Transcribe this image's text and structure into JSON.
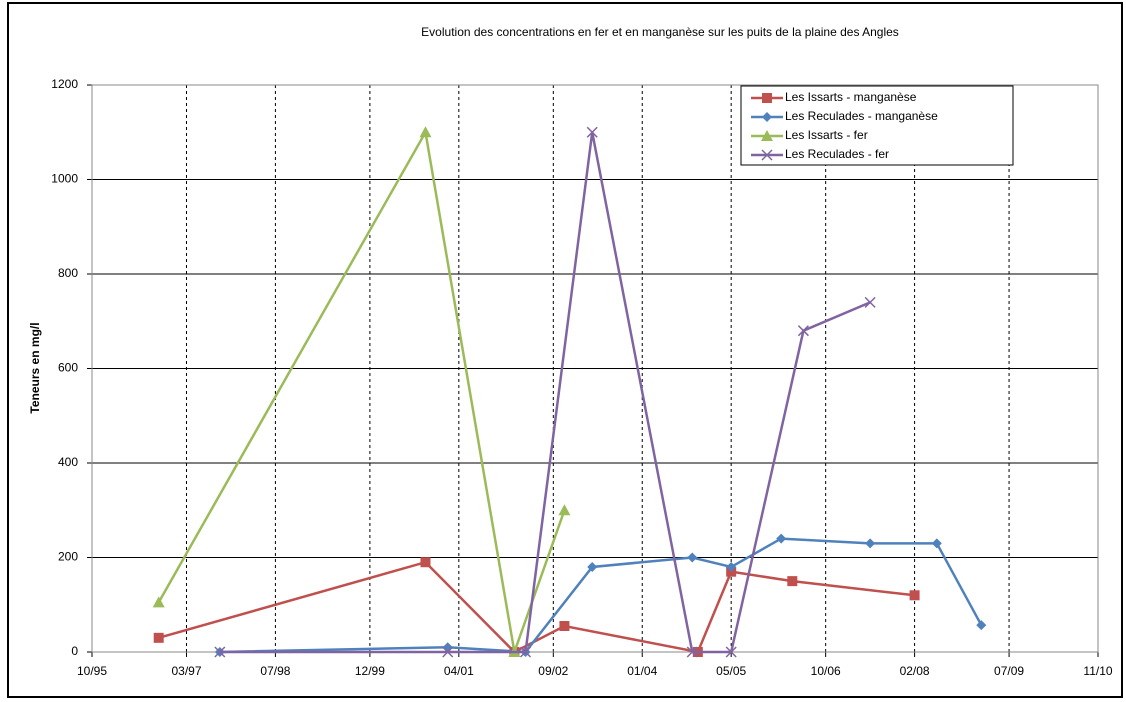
{
  "chart_data": {
    "type": "line",
    "title": "Evolution des concentrations en fer et en manganèse sur les puits de la plaine des Angles",
    "y_label": "Teneurs en mg/l",
    "xlim": [
      "1995-10",
      "2010-11"
    ],
    "xticks": [
      {
        "value": "1995-10",
        "label": "10/95"
      },
      {
        "value": "1997-03",
        "label": "03/97"
      },
      {
        "value": "1998-07",
        "label": "07/98"
      },
      {
        "value": "1999-12",
        "label": "12/99"
      },
      {
        "value": "2001-04",
        "label": "04/01"
      },
      {
        "value": "2002-09",
        "label": "09/02"
      },
      {
        "value": "2004-01",
        "label": "01/04"
      },
      {
        "value": "2005-05",
        "label": "05/05"
      },
      {
        "value": "2006-10",
        "label": "10/06"
      },
      {
        "value": "2008-02",
        "label": "02/08"
      },
      {
        "value": "2009-07",
        "label": "07/09"
      },
      {
        "value": "2010-11",
        "label": "11/10"
      }
    ],
    "ylim": [
      0,
      1200
    ],
    "yticks": [
      0,
      200,
      400,
      600,
      800,
      1000,
      1200
    ],
    "grid": true,
    "legend": "upper right",
    "series": [
      {
        "name": "Les Issarts - manganèse",
        "color": "#c0504d",
        "marker": "square",
        "x": [
          "1996-10",
          "2000-10",
          "2002-02",
          "2002-11",
          "2004-11",
          "2005-05",
          "2006-04",
          "2008-02"
        ],
        "values": [
          30,
          190,
          0,
          55,
          0,
          170,
          150,
          120
        ]
      },
      {
        "name": "Les Reculades - manganèse",
        "color": "#4f81bd",
        "marker": "diamond",
        "x": [
          "1997-09",
          "2001-02",
          "2002-04",
          "2003-04",
          "2004-10",
          "2005-05",
          "2006-02",
          "2007-06",
          "2008-06",
          "2009-02"
        ],
        "values": [
          0,
          10,
          0,
          180,
          200,
          180,
          240,
          230,
          230,
          57
        ]
      },
      {
        "name": "Les Issarts - fer",
        "color": "#9bbb59",
        "marker": "triangle",
        "x": [
          "1996-10",
          "2000-10",
          "2002-02",
          "2002-11"
        ],
        "values": [
          105,
          1100,
          0,
          300
        ]
      },
      {
        "name": "Les Reculades - fer",
        "color": "#8064a2",
        "marker": "x",
        "x": [
          "1997-09",
          "2001-02",
          "2002-04",
          "2003-04",
          "2004-10",
          "2005-05",
          "2006-06",
          "2007-06"
        ],
        "values": [
          0,
          0,
          0,
          1100,
          0,
          0,
          680,
          740
        ]
      }
    ]
  }
}
